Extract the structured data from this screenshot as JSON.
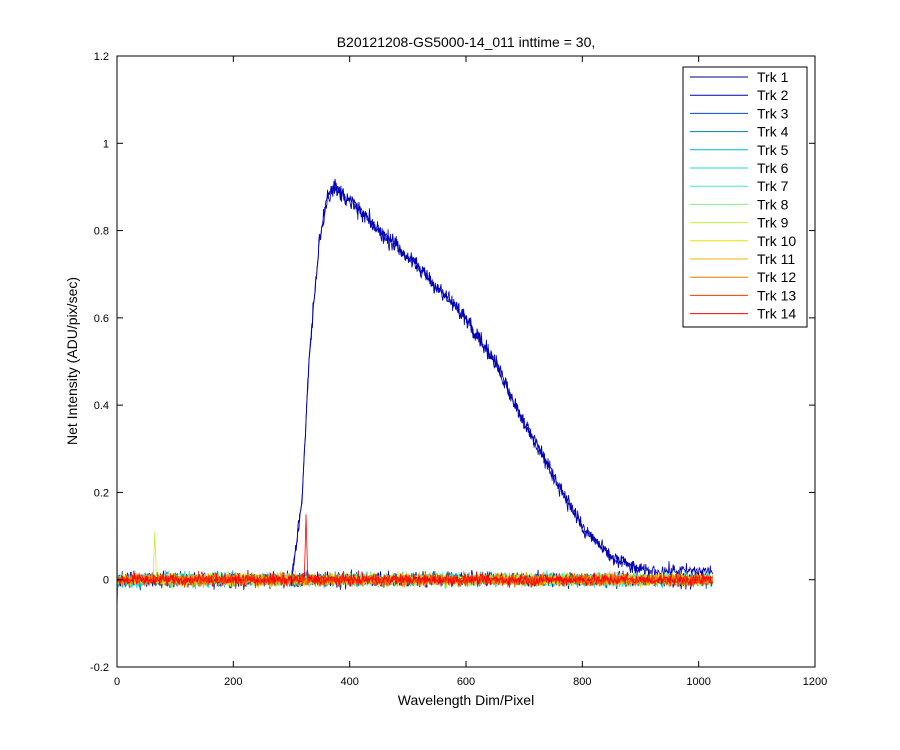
{
  "chart_data": {
    "type": "line",
    "title": "B20121208-GS5000-14_011 inttime = 30,",
    "xlabel": "Wavelength Dim/Pixel",
    "ylabel": "Net Intensity (ADU/pix/sec)",
    "xlim": [
      0,
      1200
    ],
    "ylim": [
      -0.2,
      1.2
    ],
    "x_ticks": [
      0,
      200,
      400,
      600,
      800,
      1000,
      1200
    ],
    "y_ticks": [
      -0.2,
      0,
      0.2,
      0.4,
      0.6,
      0.8,
      1,
      1.2
    ],
    "x_tick_labels": [
      "0",
      "200",
      "400",
      "600",
      "800",
      "1000",
      "1200"
    ],
    "y_tick_labels": [
      "-0.2",
      "0",
      "0.2",
      "0.4",
      "0.6",
      "0.8",
      "1",
      "1.2"
    ],
    "grid": false,
    "legend_position": "top-right",
    "x_range_of_data": [
      0,
      1024
    ],
    "series": [
      {
        "name": "Trk 1",
        "color": "#000080",
        "noise": 0.018
      },
      {
        "name": "Trk 2",
        "color": "#0000b4",
        "noise": 0.016,
        "profile": [
          [
            0,
            0.0
          ],
          [
            300,
            0.0
          ],
          [
            318,
            0.18
          ],
          [
            330,
            0.5
          ],
          [
            348,
            0.78
          ],
          [
            362,
            0.88
          ],
          [
            375,
            0.9
          ],
          [
            400,
            0.87
          ],
          [
            450,
            0.8
          ],
          [
            500,
            0.74
          ],
          [
            550,
            0.67
          ],
          [
            600,
            0.6
          ],
          [
            650,
            0.5
          ],
          [
            700,
            0.36
          ],
          [
            750,
            0.24
          ],
          [
            800,
            0.12
          ],
          [
            850,
            0.05
          ],
          [
            900,
            0.02
          ],
          [
            1024,
            0.02
          ]
        ]
      },
      {
        "name": "Trk 3",
        "color": "#0048c8",
        "noise": 0.014
      },
      {
        "name": "Trk 4",
        "color": "#0080b0",
        "noise": 0.014
      },
      {
        "name": "Trk 5",
        "color": "#00b8d0",
        "noise": 0.014
      },
      {
        "name": "Trk 6",
        "color": "#20d8d8",
        "noise": 0.016
      },
      {
        "name": "Trk 7",
        "color": "#40e8c8",
        "noise": 0.014
      },
      {
        "name": "Trk 8",
        "color": "#80f080",
        "noise": 0.014
      },
      {
        "name": "Trk 9",
        "color": "#c0f040",
        "noise": 0.014
      },
      {
        "name": "Trk 10",
        "color": "#e8e000",
        "noise": 0.014
      },
      {
        "name": "Trk 11",
        "color": "#f0b000",
        "noise": 0.014
      },
      {
        "name": "Trk 12",
        "color": "#f07800",
        "noise": 0.014
      },
      {
        "name": "Trk 13",
        "color": "#f03c00",
        "noise": 0.014
      },
      {
        "name": "Trk 14",
        "color": "#ff0000",
        "noise": 0.014
      }
    ],
    "annotations": [
      {
        "series": "Trk 9",
        "x": 65,
        "y": 0.11
      },
      {
        "series": "Trk 14",
        "x": 325,
        "y": 0.15
      }
    ]
  }
}
